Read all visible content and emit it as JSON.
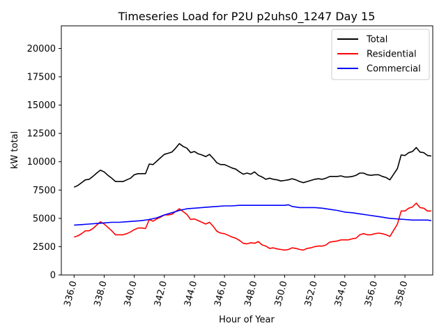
{
  "chart_data": {
    "type": "line",
    "title": "Timeseries Load for P2U p2uhs0_1247  Day 15",
    "xlabel": "Hour of Year",
    "ylabel": "kW total",
    "xlim": [
      335.15,
      359.85
    ],
    "ylim": [
      0,
      22000
    ],
    "x_ticks": [
      336,
      338,
      340,
      342,
      344,
      346,
      348,
      350,
      352,
      354,
      356,
      358
    ],
    "x_tick_labels": [
      "336.0",
      "338.0",
      "340.0",
      "342.0",
      "344.0",
      "346.0",
      "348.0",
      "350.0",
      "352.0",
      "354.0",
      "356.0",
      "358.0"
    ],
    "y_ticks": [
      0,
      2500,
      5000,
      7500,
      10000,
      12500,
      15000,
      17500,
      20000
    ],
    "y_tick_labels": [
      "0",
      "2500",
      "5000",
      "7500",
      "10000",
      "12500",
      "15000",
      "17500",
      "20000"
    ],
    "legend_position": "top-right",
    "series": [
      {
        "name": "Total",
        "color": "#000000",
        "points": [
          [
            336,
            7750
          ],
          [
            336.25,
            7900
          ],
          [
            336.5,
            8150
          ],
          [
            336.75,
            8400
          ],
          [
            337,
            8450
          ],
          [
            337.25,
            8700
          ],
          [
            337.5,
            9000
          ],
          [
            337.75,
            9250
          ],
          [
            338,
            9100
          ],
          [
            338.25,
            8800
          ],
          [
            338.5,
            8550
          ],
          [
            338.75,
            8250
          ],
          [
            339,
            8250
          ],
          [
            339.25,
            8250
          ],
          [
            339.5,
            8400
          ],
          [
            339.75,
            8550
          ],
          [
            340,
            8850
          ],
          [
            340.25,
            8950
          ],
          [
            340.5,
            8950
          ],
          [
            340.75,
            8950
          ],
          [
            341,
            9800
          ],
          [
            341.25,
            9750
          ],
          [
            341.5,
            10050
          ],
          [
            341.75,
            10350
          ],
          [
            342,
            10650
          ],
          [
            342.25,
            10750
          ],
          [
            342.5,
            10850
          ],
          [
            342.75,
            11200
          ],
          [
            343,
            11600
          ],
          [
            343.25,
            11350
          ],
          [
            343.5,
            11200
          ],
          [
            343.75,
            10800
          ],
          [
            344,
            10900
          ],
          [
            344.25,
            10700
          ],
          [
            344.5,
            10600
          ],
          [
            344.75,
            10450
          ],
          [
            345,
            10650
          ],
          [
            345.25,
            10300
          ],
          [
            345.5,
            9900
          ],
          [
            345.75,
            9750
          ],
          [
            346,
            9750
          ],
          [
            346.25,
            9600
          ],
          [
            346.5,
            9450
          ],
          [
            346.75,
            9350
          ],
          [
            347,
            9100
          ],
          [
            347.25,
            8900
          ],
          [
            347.5,
            9000
          ],
          [
            347.75,
            8900
          ],
          [
            348,
            9100
          ],
          [
            348.25,
            8800
          ],
          [
            348.5,
            8650
          ],
          [
            348.75,
            8450
          ],
          [
            349,
            8550
          ],
          [
            349.25,
            8450
          ],
          [
            349.5,
            8400
          ],
          [
            349.75,
            8300
          ],
          [
            350,
            8350
          ],
          [
            350.25,
            8400
          ],
          [
            350.5,
            8500
          ],
          [
            350.75,
            8400
          ],
          [
            351,
            8250
          ],
          [
            351.25,
            8150
          ],
          [
            351.5,
            8250
          ],
          [
            351.75,
            8350
          ],
          [
            352,
            8450
          ],
          [
            352.25,
            8500
          ],
          [
            352.5,
            8450
          ],
          [
            352.75,
            8550
          ],
          [
            353,
            8700
          ],
          [
            353.25,
            8700
          ],
          [
            353.5,
            8700
          ],
          [
            353.75,
            8750
          ],
          [
            354,
            8650
          ],
          [
            354.25,
            8650
          ],
          [
            354.5,
            8700
          ],
          [
            354.75,
            8800
          ],
          [
            355,
            9000
          ],
          [
            355.25,
            9000
          ],
          [
            355.5,
            8850
          ],
          [
            355.75,
            8800
          ],
          [
            356,
            8850
          ],
          [
            356.25,
            8850
          ],
          [
            356.5,
            8700
          ],
          [
            356.75,
            8600
          ],
          [
            357,
            8400
          ],
          [
            357.25,
            8900
          ],
          [
            357.5,
            9400
          ],
          [
            357.75,
            10600
          ],
          [
            358,
            10550
          ],
          [
            358.25,
            10800
          ],
          [
            358.5,
            10900
          ],
          [
            358.75,
            11250
          ],
          [
            359,
            10850
          ],
          [
            359.25,
            10800
          ],
          [
            359.5,
            10550
          ],
          [
            359.75,
            10500
          ]
        ]
      },
      {
        "name": "Residential",
        "color": "#ff0000",
        "points": [
          [
            336,
            3350
          ],
          [
            336.25,
            3450
          ],
          [
            336.5,
            3650
          ],
          [
            336.75,
            3900
          ],
          [
            337,
            3900
          ],
          [
            337.25,
            4100
          ],
          [
            337.5,
            4400
          ],
          [
            337.75,
            4700
          ],
          [
            338,
            4500
          ],
          [
            338.25,
            4200
          ],
          [
            338.5,
            3900
          ],
          [
            338.75,
            3550
          ],
          [
            339,
            3550
          ],
          [
            339.25,
            3550
          ],
          [
            339.5,
            3650
          ],
          [
            339.75,
            3800
          ],
          [
            340,
            4000
          ],
          [
            340.25,
            4150
          ],
          [
            340.5,
            4150
          ],
          [
            340.75,
            4100
          ],
          [
            341,
            4900
          ],
          [
            341.25,
            4750
          ],
          [
            341.5,
            4950
          ],
          [
            341.75,
            5100
          ],
          [
            342,
            5300
          ],
          [
            342.25,
            5300
          ],
          [
            342.5,
            5350
          ],
          [
            342.75,
            5600
          ],
          [
            343,
            5850
          ],
          [
            343.25,
            5600
          ],
          [
            343.5,
            5350
          ],
          [
            343.75,
            4900
          ],
          [
            344,
            4950
          ],
          [
            344.25,
            4800
          ],
          [
            344.5,
            4650
          ],
          [
            344.75,
            4500
          ],
          [
            345,
            4650
          ],
          [
            345.25,
            4300
          ],
          [
            345.5,
            3850
          ],
          [
            345.75,
            3700
          ],
          [
            346,
            3650
          ],
          [
            346.25,
            3500
          ],
          [
            346.5,
            3350
          ],
          [
            346.75,
            3250
          ],
          [
            347,
            3050
          ],
          [
            347.25,
            2800
          ],
          [
            347.5,
            2750
          ],
          [
            347.75,
            2850
          ],
          [
            348,
            2800
          ],
          [
            348.25,
            2950
          ],
          [
            348.5,
            2650
          ],
          [
            348.75,
            2550
          ],
          [
            349,
            2350
          ],
          [
            349.25,
            2400
          ],
          [
            349.5,
            2300
          ],
          [
            349.75,
            2250
          ],
          [
            350,
            2200
          ],
          [
            350.25,
            2250
          ],
          [
            350.5,
            2400
          ],
          [
            350.75,
            2350
          ],
          [
            351,
            2250
          ],
          [
            351.25,
            2200
          ],
          [
            351.5,
            2350
          ],
          [
            351.75,
            2400
          ],
          [
            352,
            2500
          ],
          [
            352.25,
            2550
          ],
          [
            352.5,
            2550
          ],
          [
            352.75,
            2650
          ],
          [
            353,
            2900
          ],
          [
            353.25,
            2950
          ],
          [
            353.5,
            3000
          ],
          [
            353.75,
            3100
          ],
          [
            354,
            3100
          ],
          [
            354.25,
            3100
          ],
          [
            354.5,
            3200
          ],
          [
            354.75,
            3250
          ],
          [
            355,
            3550
          ],
          [
            355.25,
            3650
          ],
          [
            355.5,
            3550
          ],
          [
            355.75,
            3550
          ],
          [
            356,
            3650
          ],
          [
            356.25,
            3700
          ],
          [
            356.5,
            3650
          ],
          [
            356.75,
            3550
          ],
          [
            357,
            3400
          ],
          [
            357.25,
            3950
          ],
          [
            357.5,
            4500
          ],
          [
            357.75,
            5650
          ],
          [
            358,
            5650
          ],
          [
            358.25,
            5900
          ],
          [
            358.5,
            6000
          ],
          [
            358.75,
            6350
          ],
          [
            359,
            5950
          ],
          [
            359.25,
            5900
          ],
          [
            359.5,
            5650
          ],
          [
            359.75,
            5650
          ]
        ]
      },
      {
        "name": "Commercial",
        "color": "#0000ff",
        "points": [
          [
            336,
            4400
          ],
          [
            336.5,
            4450
          ],
          [
            337,
            4500
          ],
          [
            337.5,
            4550
          ],
          [
            338,
            4600
          ],
          [
            338.5,
            4650
          ],
          [
            339,
            4650
          ],
          [
            339.5,
            4700
          ],
          [
            340,
            4750
          ],
          [
            340.5,
            4800
          ],
          [
            341,
            4900
          ],
          [
            341.5,
            5050
          ],
          [
            342,
            5300
          ],
          [
            342.5,
            5500
          ],
          [
            343,
            5700
          ],
          [
            343.5,
            5850
          ],
          [
            344,
            5900
          ],
          [
            344.5,
            5950
          ],
          [
            345,
            6000
          ],
          [
            345.5,
            6050
          ],
          [
            346,
            6100
          ],
          [
            346.5,
            6100
          ],
          [
            347,
            6150
          ],
          [
            347.5,
            6150
          ],
          [
            348,
            6150
          ],
          [
            348.5,
            6150
          ],
          [
            349,
            6150
          ],
          [
            349.5,
            6150
          ],
          [
            350,
            6150
          ],
          [
            350.25,
            6200
          ],
          [
            350.5,
            6050
          ],
          [
            351,
            5950
          ],
          [
            351.5,
            5950
          ],
          [
            352,
            5950
          ],
          [
            352.5,
            5900
          ],
          [
            353,
            5800
          ],
          [
            353.5,
            5700
          ],
          [
            354,
            5550
          ],
          [
            354.5,
            5500
          ],
          [
            355,
            5400
          ],
          [
            355.5,
            5300
          ],
          [
            356,
            5200
          ],
          [
            356.5,
            5100
          ],
          [
            357,
            5000
          ],
          [
            357.5,
            4950
          ],
          [
            358,
            4900
          ],
          [
            358.5,
            4850
          ],
          [
            359,
            4850
          ],
          [
            359.5,
            4850
          ],
          [
            359.75,
            4800
          ]
        ]
      }
    ]
  }
}
